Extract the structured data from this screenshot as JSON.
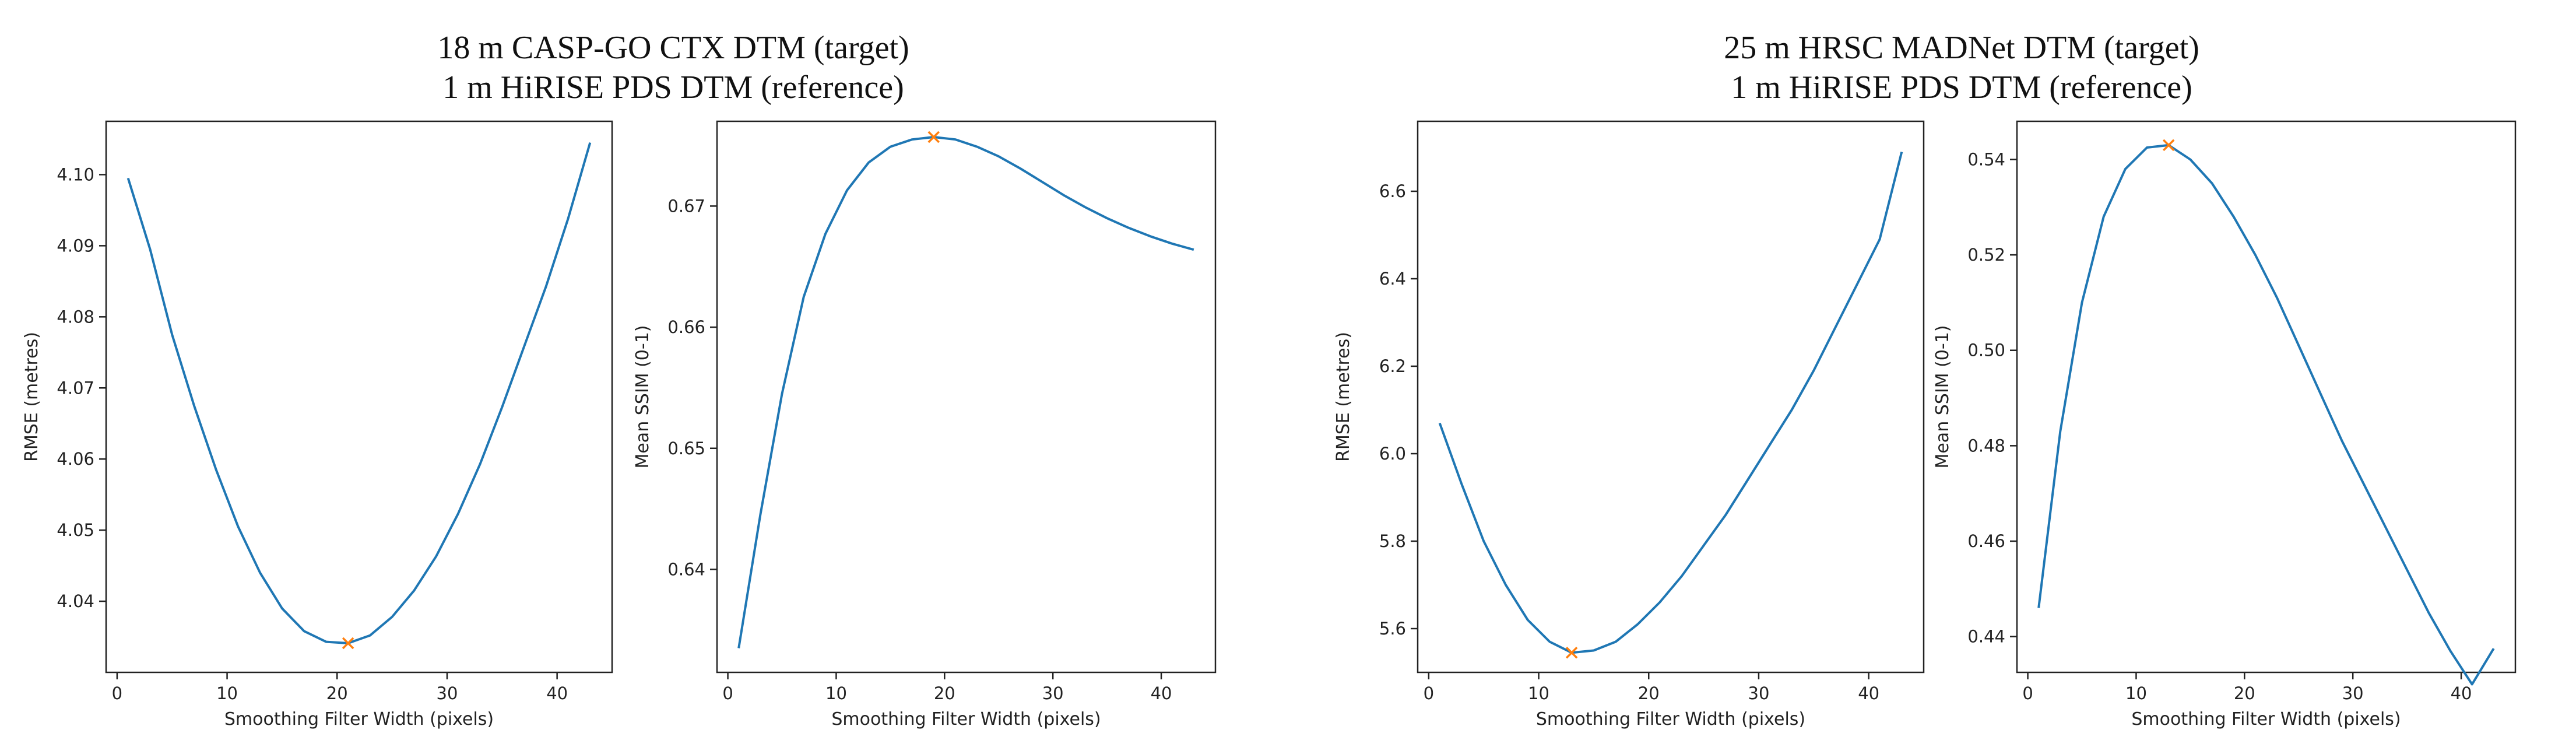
{
  "groups": [
    {
      "title_line1": "18 m CASP-GO CTX DTM (target)",
      "title_line2": "1 m HiRISE PDS DTM (reference)"
    },
    {
      "title_line1": "25 m HRSC MADNet DTM (target)",
      "title_line2": "1 m HiRISE PDS DTM (reference)"
    }
  ],
  "colors": {
    "line": "#1f77b4",
    "marker": "#ff7f0e",
    "axes": "#222222"
  },
  "chart_data": [
    {
      "type": "line",
      "xlabel": "Smoothing Filter Width (pixels)",
      "ylabel": "RMSE (metres)",
      "xlim": [
        -1,
        45
      ],
      "ylim": [
        4.03,
        4.1075
      ],
      "xticks": [
        0,
        10,
        20,
        30,
        40
      ],
      "xtick_labels": [
        "0",
        "10",
        "20",
        "30",
        "40"
      ],
      "yticks": [
        4.04,
        4.05,
        4.06,
        4.07,
        4.08,
        4.09,
        4.1
      ],
      "ytick_labels": [
        "4.04",
        "4.05",
        "4.06",
        "4.07",
        "4.08",
        "4.09",
        "4.10"
      ],
      "x": [
        1,
        3,
        5,
        7,
        9,
        11,
        13,
        15,
        17,
        19,
        21,
        23,
        25,
        27,
        29,
        31,
        33,
        35,
        37,
        39,
        41,
        43
      ],
      "y": [
        4.0995,
        4.0895,
        4.0775,
        4.0675,
        4.0585,
        4.0505,
        4.044,
        4.039,
        4.0358,
        4.0343,
        4.0341,
        4.0352,
        4.0378,
        4.0415,
        4.0463,
        4.0523,
        4.0593,
        4.0673,
        4.0758,
        4.0843,
        4.0938,
        4.1045
      ],
      "marker": {
        "x": 21,
        "y": 4.0341
      }
    },
    {
      "type": "line",
      "xlabel": "Smoothing Filter Width (pixels)",
      "ylabel": "Mean SSIM (0-1)",
      "xlim": [
        -1,
        45
      ],
      "ylim": [
        0.6315,
        0.677
      ],
      "xticks": [
        0,
        10,
        20,
        30,
        40
      ],
      "xtick_labels": [
        "0",
        "10",
        "20",
        "30",
        "40"
      ],
      "yticks": [
        0.64,
        0.65,
        0.66,
        0.67
      ],
      "ytick_labels": [
        "0.64",
        "0.65",
        "0.66",
        "0.67"
      ],
      "x": [
        1,
        3,
        5,
        7,
        9,
        11,
        13,
        15,
        17,
        19,
        21,
        23,
        25,
        27,
        29,
        31,
        33,
        35,
        37,
        39,
        41,
        43
      ],
      "y": [
        0.6335,
        0.6445,
        0.6545,
        0.6625,
        0.6677,
        0.6713,
        0.6736,
        0.6749,
        0.6755,
        0.6757,
        0.6755,
        0.6749,
        0.6741,
        0.6731,
        0.672,
        0.6709,
        0.6699,
        0.669,
        0.6682,
        0.6675,
        0.6669,
        0.6664
      ],
      "marker": {
        "x": 19,
        "y": 0.6757
      }
    },
    {
      "type": "line",
      "xlabel": "Smoothing Filter Width (pixels)",
      "ylabel": "RMSE (metres)",
      "xlim": [
        -1,
        45
      ],
      "ylim": [
        5.5,
        6.76
      ],
      "xticks": [
        0,
        10,
        20,
        30,
        40
      ],
      "xtick_labels": [
        "0",
        "10",
        "20",
        "30",
        "40"
      ],
      "yticks": [
        5.6,
        5.8,
        6.0,
        6.2,
        6.4,
        6.6
      ],
      "ytick_labels": [
        "5.6",
        "5.8",
        "6.0",
        "6.2",
        "6.4",
        "6.6"
      ],
      "x": [
        1,
        3,
        5,
        7,
        9,
        11,
        13,
        15,
        17,
        19,
        21,
        23,
        25,
        27,
        29,
        31,
        33,
        35,
        37,
        39,
        41,
        43
      ],
      "y": [
        6.07,
        5.93,
        5.8,
        5.7,
        5.62,
        5.57,
        5.545,
        5.55,
        5.57,
        5.61,
        5.66,
        5.72,
        5.79,
        5.86,
        5.94,
        6.02,
        6.1,
        6.19,
        6.29,
        6.39,
        6.49,
        6.69
      ],
      "marker": {
        "x": 13,
        "y": 5.545
      }
    },
    {
      "type": "line",
      "xlabel": "Smoothing Filter Width (pixels)",
      "ylabel": "Mean SSIM (0-1)",
      "xlim": [
        -1,
        45
      ],
      "ylim": [
        0.4325,
        0.548
      ],
      "xticks": [
        0,
        10,
        20,
        30,
        40
      ],
      "xtick_labels": [
        "0",
        "10",
        "20",
        "30",
        "40"
      ],
      "yticks": [
        0.44,
        0.46,
        0.48,
        0.5,
        0.52,
        0.54
      ],
      "ytick_labels": [
        "0.44",
        "0.46",
        "0.48",
        "0.50",
        "0.52",
        "0.54"
      ],
      "x": [
        1,
        3,
        5,
        7,
        9,
        11,
        13,
        15,
        17,
        19,
        21,
        23,
        25,
        27,
        29,
        31,
        33,
        35,
        37,
        39,
        41,
        43
      ],
      "y": [
        0.446,
        0.483,
        0.51,
        0.528,
        0.538,
        0.5425,
        0.543,
        0.54,
        0.535,
        0.528,
        0.52,
        0.511,
        0.501,
        0.491,
        0.481,
        0.472,
        0.463,
        0.454,
        0.445,
        0.437,
        0.43,
        0.4375
      ],
      "marker": {
        "x": 13,
        "y": 0.543
      }
    }
  ]
}
